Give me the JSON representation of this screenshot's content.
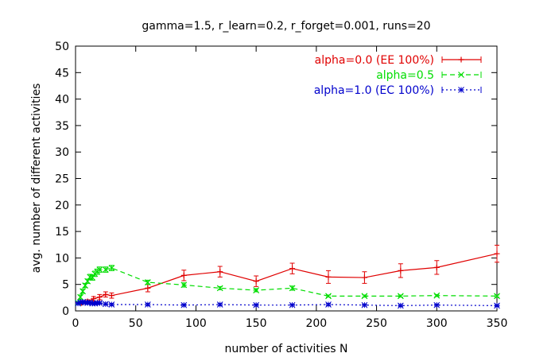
{
  "chart_data": {
    "type": "line",
    "title": "gamma=1.5, r_learn=0.2, r_forget=0.001, runs=20",
    "xlabel": "number of activities N",
    "ylabel": "avg. number of different activities",
    "xlim": [
      0,
      350
    ],
    "ylim": [
      0,
      50
    ],
    "xticks": [
      0,
      50,
      100,
      150,
      200,
      250,
      300,
      350
    ],
    "yticks": [
      0,
      5,
      10,
      15,
      20,
      25,
      30,
      35,
      40,
      45,
      50
    ],
    "grid": false,
    "legend_position": "top-right",
    "series": [
      {
        "name": "alpha=0.0 (EE 100%)",
        "color": "#e00000",
        "marker": "plus",
        "dash": "solid",
        "x": [
          5,
          10,
          15,
          20,
          25,
          30,
          60,
          90,
          120,
          150,
          180,
          210,
          240,
          270,
          300,
          350
        ],
        "y": [
          1.5,
          1.8,
          2.3,
          2.6,
          3.1,
          2.9,
          4.3,
          6.7,
          7.4,
          5.6,
          8.0,
          6.4,
          6.3,
          7.6,
          8.2,
          10.8
        ],
        "err": [
          0.3,
          0.3,
          0.4,
          0.5,
          0.5,
          0.5,
          0.7,
          1.0,
          1.0,
          1.0,
          1.0,
          1.2,
          1.1,
          1.3,
          1.3,
          1.6
        ]
      },
      {
        "name": "alpha=0.5",
        "color": "#00dd00",
        "marker": "x",
        "dash": "dashed",
        "x": [
          2,
          4,
          6,
          8,
          10,
          12,
          14,
          16,
          18,
          20,
          25,
          30,
          60,
          90,
          120,
          150,
          180,
          210,
          240,
          270,
          300,
          350
        ],
        "y": [
          1.5,
          2.6,
          3.7,
          4.8,
          5.6,
          6.4,
          6.3,
          7.0,
          7.4,
          7.8,
          7.8,
          8.1,
          5.4,
          4.9,
          4.3,
          3.9,
          4.3,
          2.8,
          2.8,
          2.8,
          2.9,
          2.8
        ],
        "err": [
          0.3,
          0.4,
          0.4,
          0.4,
          0.4,
          0.5,
          0.5,
          0.5,
          0.5,
          0.5,
          0.5,
          0.5,
          0.4,
          0.4,
          0.3,
          0.3,
          0.4,
          0.2,
          0.2,
          0.2,
          0.2,
          0.2
        ]
      },
      {
        "name": "alpha=1.0 (EC 100%)",
        "color": "#0000cc",
        "marker": "star",
        "dash": "dotted",
        "x": [
          2,
          4,
          6,
          8,
          10,
          12,
          14,
          16,
          18,
          20,
          25,
          30,
          60,
          90,
          120,
          150,
          180,
          210,
          240,
          270,
          300,
          350
        ],
        "y": [
          1.4,
          1.6,
          1.7,
          1.6,
          1.5,
          1.6,
          1.4,
          1.4,
          1.5,
          1.5,
          1.3,
          1.2,
          1.2,
          1.1,
          1.2,
          1.1,
          1.1,
          1.2,
          1.1,
          1.0,
          1.1,
          1.0
        ],
        "err": [
          0.2,
          0.2,
          0.2,
          0.2,
          0.2,
          0.2,
          0.2,
          0.2,
          0.2,
          0.2,
          0.2,
          0.2,
          0.2,
          0.2,
          0.2,
          0.2,
          0.2,
          0.2,
          0.2,
          0.2,
          0.2,
          0.2
        ]
      }
    ]
  }
}
